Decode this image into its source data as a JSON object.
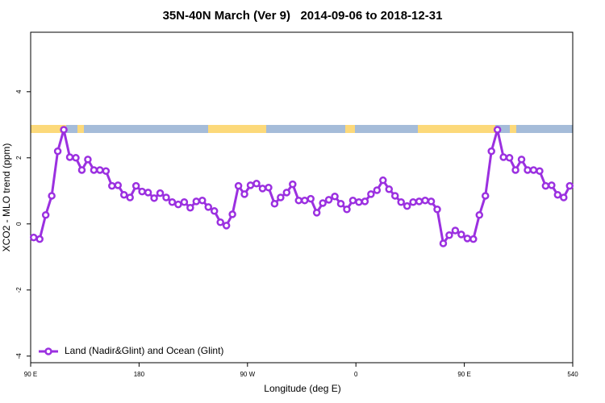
{
  "chart_data": {
    "type": "line",
    "title": "35N-40N March (Ver 9)   2014-09-06 to 2018-12-31",
    "x_label": "Longitude (deg E)",
    "y_label": "XCO2 - MLO trend (ppm)",
    "xlim": [
      90,
      540
    ],
    "xticks": [
      {
        "value": 90,
        "label": "90 E"
      },
      180,
      {
        "value": 270,
        "label": "90 W"
      },
      {
        "value": 360,
        "label": "0"
      },
      {
        "value": 450,
        "label": "90 E"
      },
      540
    ],
    "ylim": [
      -4.2,
      5.8
    ],
    "yticks": [
      -4,
      -2,
      0,
      2,
      4
    ],
    "legend": "bottom left",
    "x": [
      92.5,
      97.5,
      102.5,
      107.5,
      112.5,
      117.5,
      122.5,
      127.5,
      132.5,
      137.5,
      142.5,
      147.5,
      152.5,
      157.5,
      162.5,
      167.5,
      172.5,
      177.5,
      182.5,
      187.5,
      192.5,
      197.5,
      202.5,
      207.5,
      212.5,
      217.5,
      222.5,
      227.5,
      232.5,
      237.5,
      242.5,
      247.5,
      252.5,
      257.5,
      262.5,
      267.5,
      272.5,
      277.5,
      282.5,
      287.5,
      292.5,
      297.5,
      302.5,
      307.5,
      312.5,
      317.5,
      322.5,
      327.5,
      332.5,
      337.5,
      342.5,
      347.5,
      352.5,
      357.5,
      362.5,
      367.5,
      372.5,
      377.5,
      382.5,
      387.5,
      392.5,
      397.5,
      402.5,
      407.5,
      412.5,
      417.5,
      422.5,
      427.5,
      432.5,
      437.5,
      442.5,
      447.5,
      452.5,
      457.5,
      462.5,
      467.5,
      472.5,
      477.5,
      482.5,
      487.5,
      492.5,
      497.5,
      502.5,
      507.5,
      512.5,
      517.5,
      522.5,
      527.5,
      532.5,
      537.5
    ],
    "series": [
      {
        "name": "Land (Nadir&Glint) and Ocean (Glint)",
        "color": "#9b30e0",
        "values": [
          -0.41,
          -0.46,
          0.27,
          0.85,
          2.2,
          2.85,
          2.02,
          2.0,
          1.63,
          1.95,
          1.63,
          1.63,
          1.6,
          1.15,
          1.17,
          0.88,
          0.8,
          1.15,
          0.98,
          0.95,
          0.78,
          0.93,
          0.8,
          0.66,
          0.59,
          0.66,
          0.49,
          0.68,
          0.71,
          0.51,
          0.39,
          0.05,
          -0.05,
          0.29,
          1.15,
          0.9,
          1.17,
          1.22,
          1.07,
          1.1,
          0.61,
          0.8,
          0.95,
          1.2,
          0.71,
          0.71,
          0.76,
          0.34,
          0.63,
          0.73,
          0.83,
          0.61,
          0.44,
          0.71,
          0.66,
          0.68,
          0.9,
          1.02,
          1.32,
          1.05,
          0.85,
          0.66,
          0.54,
          0.66,
          0.68,
          0.71,
          0.68,
          0.44,
          -0.59,
          -0.34,
          -0.2,
          -0.32,
          -0.44,
          -0.46,
          0.27,
          0.85,
          2.2,
          2.85,
          2.02,
          2.0,
          1.63,
          1.95,
          1.63,
          1.63,
          1.6,
          1.15,
          1.17,
          0.88,
          0.8,
          1.15
        ]
      }
    ]
  }
}
